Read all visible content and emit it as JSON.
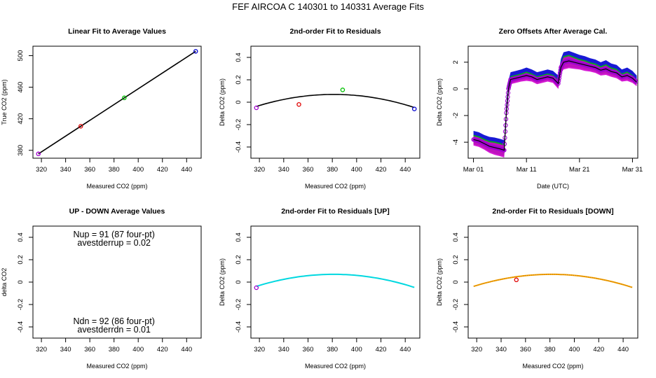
{
  "figure_title": "FEF   AIRCOA C   140301 to 140331   Average Fits",
  "colors": {
    "black": "#000000",
    "red": "#e00000",
    "green": "#00c000",
    "blue": "#0000d0",
    "purple": "#a000d0",
    "magenta": "#d000d0",
    "cyan": "#00d8e0",
    "orange": "#f0a000"
  },
  "chart_data": [
    {
      "type": "scatter",
      "title": "Linear Fit to Average Values",
      "xlabel": "Measured CO2 (ppm)",
      "ylabel": "True CO2 (ppm)",
      "xlim": [
        313,
        452
      ],
      "ylim": [
        370,
        512
      ],
      "xticks": [
        320,
        340,
        360,
        380,
        400,
        420,
        440
      ],
      "yticks": [
        380,
        420,
        460,
        500
      ],
      "points": [
        {
          "x": 317.5,
          "y": 375.5,
          "color": "purple"
        },
        {
          "x": 352.5,
          "y": 410.5,
          "color": "red"
        },
        {
          "x": 388.5,
          "y": 446.5,
          "color": "green"
        },
        {
          "x": 447.5,
          "y": 505.5,
          "color": "blue"
        }
      ],
      "line": {
        "x": [
          317.5,
          447.5
        ],
        "y": [
          375.5,
          505.5
        ],
        "color": "black"
      }
    },
    {
      "type": "scatter",
      "title": "2nd-order Fit to Residuals",
      "xlabel": "Measured CO2 (ppm)",
      "ylabel": "Delta CO2 (ppm)",
      "xlim": [
        313,
        452
      ],
      "ylim": [
        -0.5,
        0.5
      ],
      "xticks": [
        320,
        340,
        360,
        380,
        400,
        420,
        440
      ],
      "yticks": [
        -0.4,
        -0.2,
        0.0,
        0.2,
        0.4
      ],
      "points": [
        {
          "x": 317.5,
          "y": -0.05,
          "color": "purple"
        },
        {
          "x": 352.5,
          "y": -0.02,
          "color": "red"
        },
        {
          "x": 388.5,
          "y": 0.11,
          "color": "green"
        },
        {
          "x": 447.5,
          "y": -0.06,
          "color": "blue"
        }
      ],
      "curve": {
        "a": -2.65e-05,
        "b": 0.0202,
        "c": -3.78,
        "x_range": [
          317.5,
          447.5
        ],
        "color": "black"
      }
    },
    {
      "type": "line",
      "title": "Zero Offsets After Average Cal.",
      "xlabel": "Date (UTC)",
      "ylabel": "Delta CO2 (ppm)",
      "xlim": [
        0,
        32
      ],
      "ylim": [
        -5.2,
        3.2
      ],
      "xticks": [
        {
          "v": 1,
          "label": "Mar 01"
        },
        {
          "v": 11,
          "label": "Mar 11"
        },
        {
          "v": 21,
          "label": "Mar 21"
        },
        {
          "v": 31,
          "label": "Mar 31"
        }
      ],
      "yticks": [
        -4,
        -2,
        0,
        2
      ],
      "x": [
        1.0,
        2.0,
        3.0,
        4.0,
        5.0,
        6.0,
        6.8,
        7.2,
        7.6,
        8.0,
        9.0,
        10.0,
        11.0,
        12.0,
        13.0,
        14.0,
        15.0,
        16.0,
        17.0,
        17.5,
        18.0,
        19.0,
        20.0,
        21.0,
        22.0,
        23.0,
        24.0,
        25.0,
        26.0,
        27.0,
        28.0,
        29.0,
        30.0,
        31.0,
        31.8
      ],
      "y": [
        -3.8,
        -3.9,
        -4.1,
        -4.3,
        -4.4,
        -4.5,
        -4.6,
        -1.8,
        0.0,
        0.7,
        0.8,
        0.9,
        1.0,
        0.9,
        0.7,
        0.8,
        0.9,
        0.8,
        0.4,
        1.6,
        2.0,
        2.1,
        2.0,
        1.9,
        1.8,
        1.7,
        1.6,
        1.4,
        1.5,
        1.3,
        1.2,
        0.9,
        1.0,
        0.8,
        0.5
      ],
      "spread": [
        0.35,
        0.35,
        0.35,
        0.4,
        0.45,
        0.45,
        0.45,
        0.3,
        0.3,
        0.25,
        0.25,
        0.25,
        0.3,
        0.25,
        0.25,
        0.25,
        0.25,
        0.25,
        0.3,
        0.35,
        0.45,
        0.45,
        0.4,
        0.35,
        0.35,
        0.3,
        0.3,
        0.3,
        0.35,
        0.3,
        0.3,
        0.25,
        0.3,
        0.25,
        0.2
      ],
      "bands": [
        {
          "name": "blue",
          "offset": 0.3,
          "color": "blue"
        },
        {
          "name": "green",
          "offset": 0.0,
          "color": "green"
        },
        {
          "name": "magenta",
          "offset": -0.1,
          "color": "magenta"
        }
      ],
      "points_color": "purple"
    },
    {
      "type": "text",
      "title": "UP - DOWN Average Values",
      "xlabel": "Measured CO2 (ppm)",
      "ylabel": "delta CO2",
      "xlim": [
        313,
        452
      ],
      "ylim": [
        -0.5,
        0.5
      ],
      "xticks": [
        320,
        340,
        360,
        380,
        400,
        420,
        440
      ],
      "yticks": [
        -0.4,
        -0.2,
        0.0,
        0.2,
        0.4
      ],
      "annotations_top": [
        "Nup = 91 (87 four-pt)",
        "avestderrup =  0.02"
      ],
      "annotations_bottom": [
        "Ndn = 92 (86 four-pt)",
        "avestderrdn =  0.01"
      ]
    },
    {
      "type": "line",
      "title": "2nd-order Fit to Residuals [UP]",
      "xlabel": "Measured CO2 (ppm)",
      "ylabel": "Delta CO2 (ppm)",
      "xlim": [
        313,
        452
      ],
      "ylim": [
        -0.5,
        0.5
      ],
      "xticks": [
        320,
        340,
        360,
        380,
        400,
        420,
        440
      ],
      "yticks": [
        -0.4,
        -0.2,
        0.0,
        0.2,
        0.4
      ],
      "points": [
        {
          "x": 317.5,
          "y": -0.05,
          "color": "purple"
        }
      ],
      "curve": {
        "a": -2.65e-05,
        "b": 0.0202,
        "c": -3.78,
        "x_range": [
          317.5,
          447.5
        ],
        "color": "cyan"
      }
    },
    {
      "type": "line",
      "title": "2nd-order Fit to Residuals [DOWN]",
      "xlabel": "Measured CO2 (ppm)",
      "ylabel": "Delta CO2 (ppm)",
      "xlim": [
        313,
        452
      ],
      "ylim": [
        -0.5,
        0.5
      ],
      "xticks": [
        320,
        340,
        360,
        380,
        400,
        420,
        440
      ],
      "yticks": [
        -0.4,
        -0.2,
        0.0,
        0.2,
        0.4
      ],
      "points": [
        {
          "x": 352.5,
          "y": 0.02,
          "color": "red"
        }
      ],
      "curve": {
        "a": -2.65e-05,
        "b": 0.0202,
        "c": -3.78,
        "x_range": [
          317.5,
          447.5
        ],
        "color": "orange"
      }
    }
  ]
}
